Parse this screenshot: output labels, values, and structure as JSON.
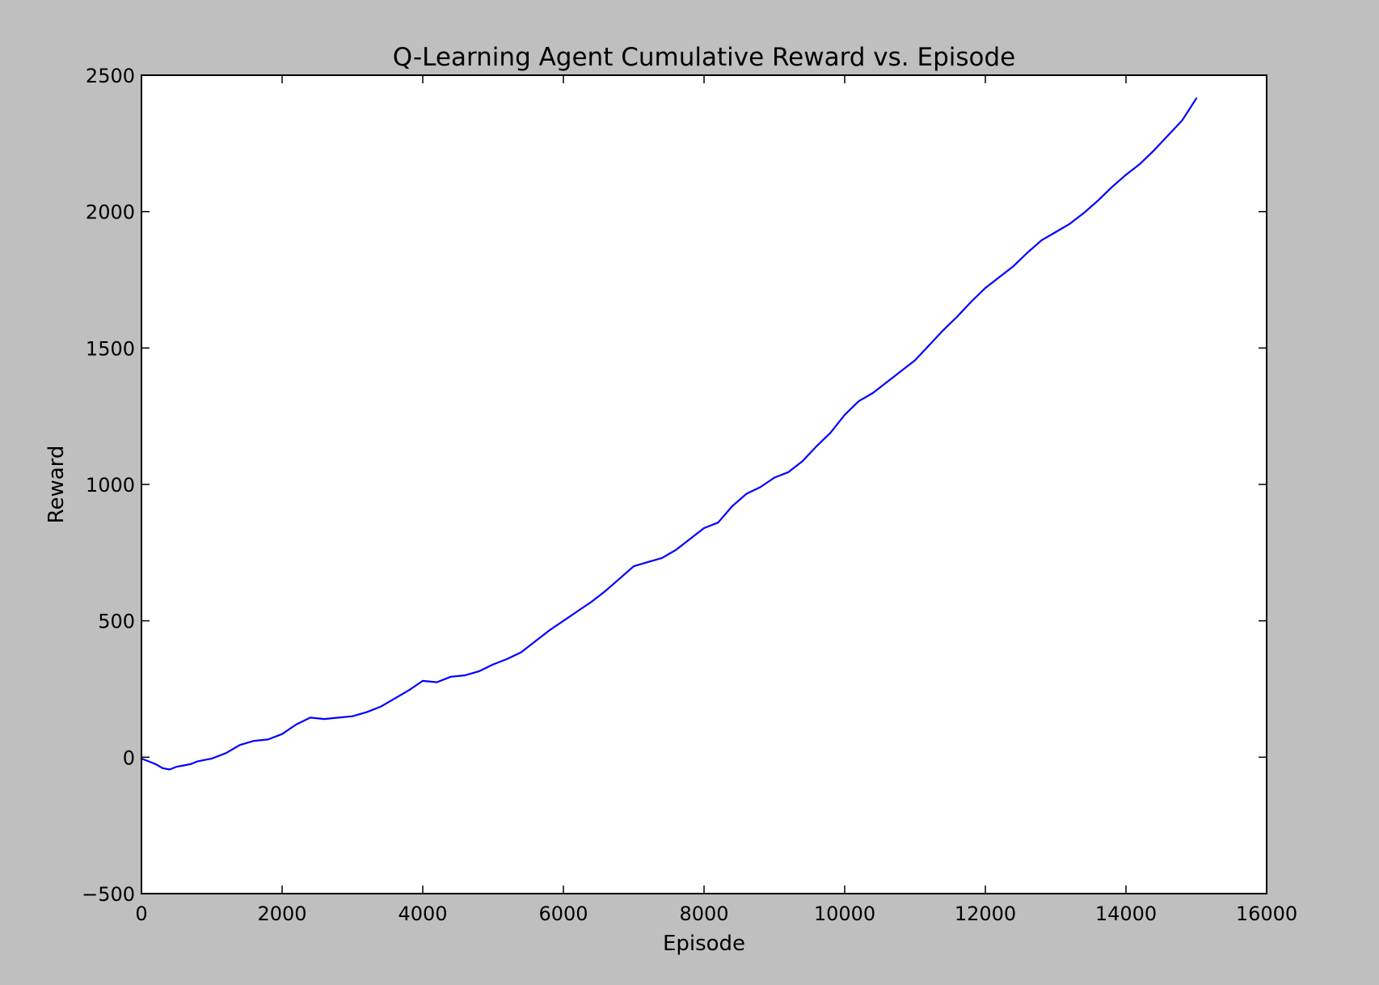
{
  "chart_data": {
    "type": "line",
    "title": "Q-Learning Agent Cumulative Reward vs. Episode",
    "xlabel": "Episode",
    "ylabel": "Reward",
    "xlim": [
      0,
      16000
    ],
    "ylim": [
      -500,
      2500
    ],
    "xticks": [
      0,
      2000,
      4000,
      6000,
      8000,
      10000,
      12000,
      14000,
      16000
    ],
    "yticks": [
      -500,
      0,
      500,
      1000,
      1500,
      2000,
      2500
    ],
    "xtick_labels": [
      "0",
      "2000",
      "4000",
      "6000",
      "8000",
      "10000",
      "12000",
      "14000",
      "16000"
    ],
    "ytick_labels": [
      "−500",
      "0",
      "500",
      "1000",
      "1500",
      "2000",
      "2500"
    ],
    "grid": false,
    "colors": {
      "figure_background": "#bfbfbf",
      "plot_background": "#ffffff",
      "line": "#0000ff"
    },
    "series": [
      {
        "x": [
          0,
          100,
          200,
          300,
          400,
          500,
          600,
          700,
          800,
          900,
          1000,
          1200,
          1400,
          1600,
          1800,
          2000,
          2200,
          2400,
          2600,
          2800,
          3000,
          3200,
          3400,
          3600,
          3800,
          4000,
          4200,
          4400,
          4600,
          4800,
          5000,
          5200,
          5400,
          5600,
          5800,
          6000,
          6200,
          6400,
          6600,
          6800,
          7000,
          7200,
          7400,
          7600,
          7800,
          8000,
          8200,
          8400,
          8600,
          8800,
          9000,
          9200,
          9400,
          9600,
          9800,
          10000,
          10200,
          10400,
          10600,
          10800,
          11000,
          11200,
          11400,
          11600,
          11800,
          12000,
          12200,
          12400,
          12600,
          12800,
          13000,
          13200,
          13400,
          13600,
          13800,
          14000,
          14200,
          14400,
          14600,
          14800,
          15000
        ],
        "y": [
          -5,
          -15,
          -25,
          -40,
          -45,
          -35,
          -30,
          -25,
          -15,
          -10,
          -5,
          15,
          45,
          60,
          65,
          85,
          120,
          145,
          140,
          145,
          150,
          165,
          185,
          215,
          245,
          280,
          275,
          295,
          300,
          315,
          340,
          360,
          385,
          425,
          465,
          500,
          535,
          570,
          610,
          655,
          700,
          715,
          730,
          760,
          800,
          840,
          860,
          920,
          965,
          990,
          1025,
          1045,
          1085,
          1140,
          1190,
          1255,
          1305,
          1335,
          1375,
          1415,
          1455,
          1510,
          1565,
          1615,
          1670,
          1720,
          1760,
          1800,
          1850,
          1895,
          1925,
          1955,
          1995,
          2040,
          2090,
          2135,
          2175,
          2225,
          2280,
          2335,
          2415
        ]
      }
    ]
  }
}
